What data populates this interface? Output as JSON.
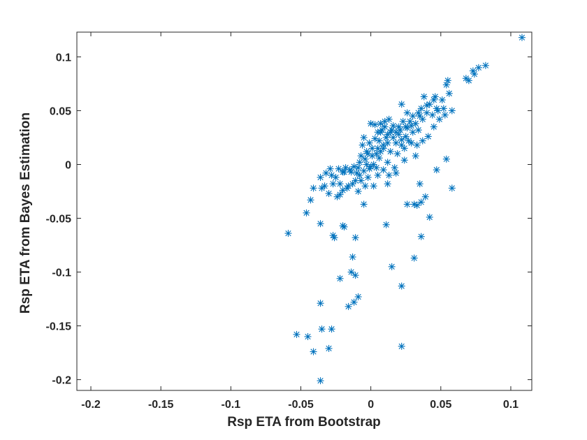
{
  "chart_data": {
    "type": "scatter",
    "xlabel": "Rsp ETA from Bootstrap",
    "ylabel": "Rsp ETA from Bayes Estimation",
    "xlim": [
      -0.21,
      0.115
    ],
    "ylim": [
      -0.21,
      0.123
    ],
    "xticks": [
      -0.2,
      -0.15,
      -0.1,
      -0.05,
      0,
      0.05,
      0.1
    ],
    "xtick_labels": [
      "-0.2",
      "-0.15",
      "-0.1",
      "-0.05",
      "0",
      "0.05",
      "0.1"
    ],
    "yticks": [
      -0.2,
      -0.15,
      -0.1,
      -0.05,
      0,
      0.05,
      0.1
    ],
    "ytick_labels": [
      "-0.2",
      "-0.15",
      "-0.1",
      "-0.05",
      "0",
      "0.05",
      "0.1"
    ],
    "grid": false,
    "marker": "asterisk",
    "color": "#0072bd",
    "points": [
      [
        0.108,
        0.118
      ],
      [
        0.082,
        0.092
      ],
      [
        0.077,
        0.09
      ],
      [
        0.073,
        0.087
      ],
      [
        0.074,
        0.084
      ],
      [
        0.07,
        0.078
      ],
      [
        0.068,
        0.08
      ],
      [
        0.055,
        0.078
      ],
      [
        0.054,
        0.074
      ],
      [
        0.056,
        0.066
      ],
      [
        0.051,
        0.06
      ],
      [
        0.046,
        0.063
      ],
      [
        0.045,
        0.06
      ],
      [
        0.042,
        0.056
      ],
      [
        0.038,
        0.063
      ],
      [
        0.04,
        0.055
      ],
      [
        0.036,
        0.052
      ],
      [
        0.048,
        0.05
      ],
      [
        0.052,
        0.052
      ],
      [
        0.026,
        0.048
      ],
      [
        0.022,
        0.056
      ],
      [
        0.03,
        0.045
      ],
      [
        0.035,
        0.045
      ],
      [
        0.028,
        0.04
      ],
      [
        0.032,
        0.038
      ],
      [
        0.025,
        0.035
      ],
      [
        0.02,
        0.035
      ],
      [
        0.015,
        0.032
      ],
      [
        0.018,
        0.03
      ],
      [
        0.012,
        0.028
      ],
      [
        0.008,
        0.032
      ],
      [
        0.005,
        0.03
      ],
      [
        0.01,
        0.04
      ],
      [
        0.003,
        0.037
      ],
      [
        0.0,
        0.038
      ],
      [
        0.006,
        0.022
      ],
      [
        0.012,
        0.02
      ],
      [
        0.016,
        0.025
      ],
      [
        0.02,
        0.028
      ],
      [
        0.025,
        0.026
      ],
      [
        0.03,
        0.03
      ],
      [
        0.034,
        0.032
      ],
      [
        0.027,
        0.022
      ],
      [
        0.022,
        0.018
      ],
      [
        0.009,
        0.015
      ],
      [
        0.004,
        0.01
      ],
      [
        0.001,
        0.008
      ],
      [
        -0.003,
        0.012
      ],
      [
        -0.006,
        0.018
      ],
      [
        -0.004,
        0.005
      ],
      [
        -0.008,
        0.002
      ],
      [
        -0.012,
        -0.002
      ],
      [
        -0.015,
        -0.005
      ],
      [
        -0.02,
        -0.007
      ],
      [
        -0.018,
        -0.003
      ],
      [
        -0.01,
        -0.008
      ],
      [
        -0.005,
        -0.006
      ],
      [
        0.002,
        0.0
      ],
      [
        -0.001,
        -0.004
      ],
      [
        0.006,
        0.006
      ],
      [
        0.012,
        0.002
      ],
      [
        0.017,
        -0.003
      ],
      [
        0.014,
        0.012
      ],
      [
        0.019,
        0.01
      ],
      [
        0.024,
        0.015
      ],
      [
        0.029,
        0.02
      ],
      [
        0.033,
        0.018
      ],
      [
        0.037,
        0.022
      ],
      [
        0.041,
        0.026
      ],
      [
        0.045,
        0.035
      ],
      [
        0.049,
        0.042
      ],
      [
        0.053,
        0.046
      ],
      [
        0.058,
        0.05
      ],
      [
        -0.028,
        -0.01
      ],
      [
        -0.025,
        -0.012
      ],
      [
        -0.022,
        -0.018
      ],
      [
        -0.02,
        -0.024
      ],
      [
        -0.024,
        -0.03
      ],
      [
        -0.016,
        -0.02
      ],
      [
        -0.011,
        -0.015
      ],
      [
        -0.008,
        -0.01
      ],
      [
        -0.027,
        -0.018
      ],
      [
        -0.033,
        -0.02
      ],
      [
        -0.03,
        -0.027
      ],
      [
        -0.035,
        -0.022
      ],
      [
        -0.036,
        -0.012
      ],
      [
        -0.032,
        -0.008
      ],
      [
        -0.029,
        -0.004
      ],
      [
        -0.023,
        -0.004
      ],
      [
        -0.019,
        -0.007
      ],
      [
        -0.014,
        -0.007
      ],
      [
        -0.009,
        -0.003
      ],
      [
        -0.002,
        -0.012
      ],
      [
        0.004,
        -0.003
      ],
      [
        0.009,
        -0.005
      ],
      [
        0.013,
        -0.01
      ],
      [
        0.005,
        -0.01
      ],
      [
        -0.007,
        -0.015
      ],
      [
        -0.013,
        -0.018
      ],
      [
        -0.017,
        -0.022
      ],
      [
        -0.022,
        -0.028
      ],
      [
        -0.009,
        -0.025
      ],
      [
        -0.004,
        -0.02
      ],
      [
        0.002,
        -0.02
      ],
      [
        0.012,
        -0.018
      ],
      [
        -0.043,
        -0.033
      ],
      [
        -0.046,
        -0.045
      ],
      [
        -0.041,
        -0.022
      ],
      [
        -0.059,
        -0.064
      ],
      [
        -0.036,
        -0.055
      ],
      [
        -0.02,
        -0.057
      ],
      [
        -0.019,
        -0.058
      ],
      [
        -0.027,
        -0.066
      ],
      [
        -0.026,
        -0.068
      ],
      [
        -0.011,
        -0.068
      ],
      [
        -0.013,
        -0.086
      ],
      [
        -0.014,
        -0.1
      ],
      [
        -0.011,
        -0.103
      ],
      [
        -0.022,
        -0.106
      ],
      [
        -0.036,
        -0.129
      ],
      [
        -0.016,
        -0.132
      ],
      [
        -0.012,
        -0.128
      ],
      [
        -0.009,
        -0.123
      ],
      [
        -0.053,
        -0.158
      ],
      [
        -0.045,
        -0.16
      ],
      [
        -0.035,
        -0.153
      ],
      [
        -0.028,
        -0.153
      ],
      [
        -0.041,
        -0.174
      ],
      [
        -0.03,
        -0.171
      ],
      [
        -0.036,
        -0.201
      ],
      [
        -0.005,
        -0.037
      ],
      [
        0.011,
        -0.056
      ],
      [
        0.015,
        -0.095
      ],
      [
        0.022,
        -0.113
      ],
      [
        0.022,
        -0.169
      ],
      [
        0.026,
        -0.037
      ],
      [
        0.031,
        -0.037
      ],
      [
        0.036,
        -0.035
      ],
      [
        0.039,
        -0.03
      ],
      [
        0.036,
        -0.067
      ],
      [
        0.042,
        -0.049
      ],
      [
        0.031,
        -0.087
      ],
      [
        0.033,
        -0.038
      ],
      [
        0.035,
        -0.018
      ],
      [
        0.047,
        -0.005
      ],
      [
        0.054,
        0.005
      ],
      [
        0.058,
        -0.022
      ],
      [
        0.032,
        0.008
      ],
      [
        0.022,
        0.023
      ],
      [
        0.018,
        0.02
      ],
      [
        0.011,
        0.025
      ],
      [
        0.007,
        0.03
      ],
      [
        0.003,
        0.024
      ],
      [
        -0.001,
        0.02
      ],
      [
        0.001,
        0.015
      ],
      [
        0.014,
        0.03
      ],
      [
        0.023,
        0.04
      ],
      [
        0.029,
        0.036
      ],
      [
        0.037,
        0.042
      ],
      [
        0.044,
        0.046
      ],
      [
        0.047,
        0.052
      ],
      [
        0.04,
        0.048
      ],
      [
        0.034,
        0.048
      ],
      [
        0.026,
        0.034
      ],
      [
        0.021,
        0.032
      ],
      [
        0.016,
        0.036
      ],
      [
        0.01,
        0.035
      ],
      [
        0.007,
        0.038
      ],
      [
        0.013,
        0.042
      ],
      [
        -0.005,
        0.025
      ],
      [
        -0.007,
        0.008
      ],
      [
        -0.003,
        0.0
      ],
      [
        0.0,
        -0.002
      ],
      [
        0.007,
        0.012
      ],
      [
        0.018,
        -0.008
      ],
      [
        0.024,
        0.004
      ],
      [
        0.009,
        0.018
      ],
      [
        0.005,
        0.015
      ],
      [
        -0.002,
        0.01
      ]
    ]
  }
}
